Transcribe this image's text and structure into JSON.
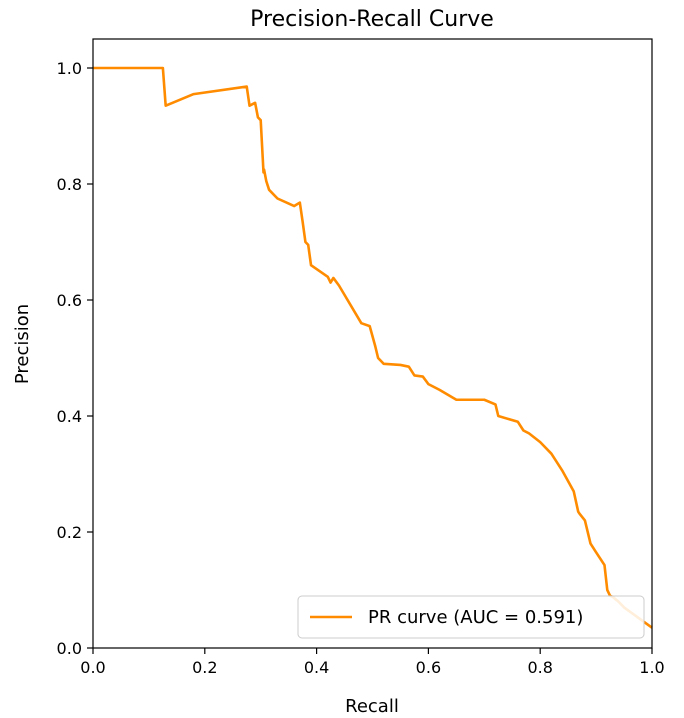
{
  "chart_data": {
    "type": "line",
    "title": "Precision-Recall Curve",
    "xlabel": "Recall",
    "ylabel": "Precision",
    "xlim": [
      0.0,
      1.0
    ],
    "ylim": [
      0.0,
      1.05
    ],
    "xticks": [
      "0.0",
      "0.2",
      "0.4",
      "0.6",
      "0.8",
      "1.0"
    ],
    "yticks": [
      "0.0",
      "0.2",
      "0.4",
      "0.6",
      "0.8",
      "1.0"
    ],
    "grid": false,
    "legend_position": "lower-right",
    "series": [
      {
        "name": "PR curve (AUC = 0.591)",
        "color": "#ff8c00",
        "x": [
          0.0,
          0.125,
          0.13,
          0.18,
          0.275,
          0.28,
          0.29,
          0.295,
          0.3,
          0.305,
          0.306,
          0.31,
          0.315,
          0.33,
          0.36,
          0.37,
          0.375,
          0.38,
          0.385,
          0.39,
          0.42,
          0.425,
          0.43,
          0.44,
          0.48,
          0.495,
          0.505,
          0.51,
          0.52,
          0.55,
          0.565,
          0.575,
          0.59,
          0.6,
          0.62,
          0.65,
          0.7,
          0.72,
          0.725,
          0.76,
          0.77,
          0.78,
          0.8,
          0.82,
          0.84,
          0.86,
          0.868,
          0.87,
          0.88,
          0.89,
          0.9,
          0.915,
          0.92,
          0.925,
          0.93,
          0.94,
          0.95,
          1.0
        ],
        "y": [
          1.0,
          1.0,
          0.935,
          0.955,
          0.968,
          0.935,
          0.94,
          0.915,
          0.91,
          0.82,
          0.825,
          0.805,
          0.79,
          0.775,
          0.762,
          0.768,
          0.735,
          0.7,
          0.695,
          0.66,
          0.64,
          0.63,
          0.638,
          0.625,
          0.56,
          0.555,
          0.52,
          0.5,
          0.49,
          0.488,
          0.485,
          0.47,
          0.468,
          0.455,
          0.445,
          0.428,
          0.428,
          0.42,
          0.4,
          0.39,
          0.375,
          0.37,
          0.355,
          0.335,
          0.305,
          0.27,
          0.235,
          0.232,
          0.22,
          0.18,
          0.165,
          0.143,
          0.1,
          0.09,
          0.088,
          0.08,
          0.07,
          0.035
        ]
      }
    ]
  }
}
